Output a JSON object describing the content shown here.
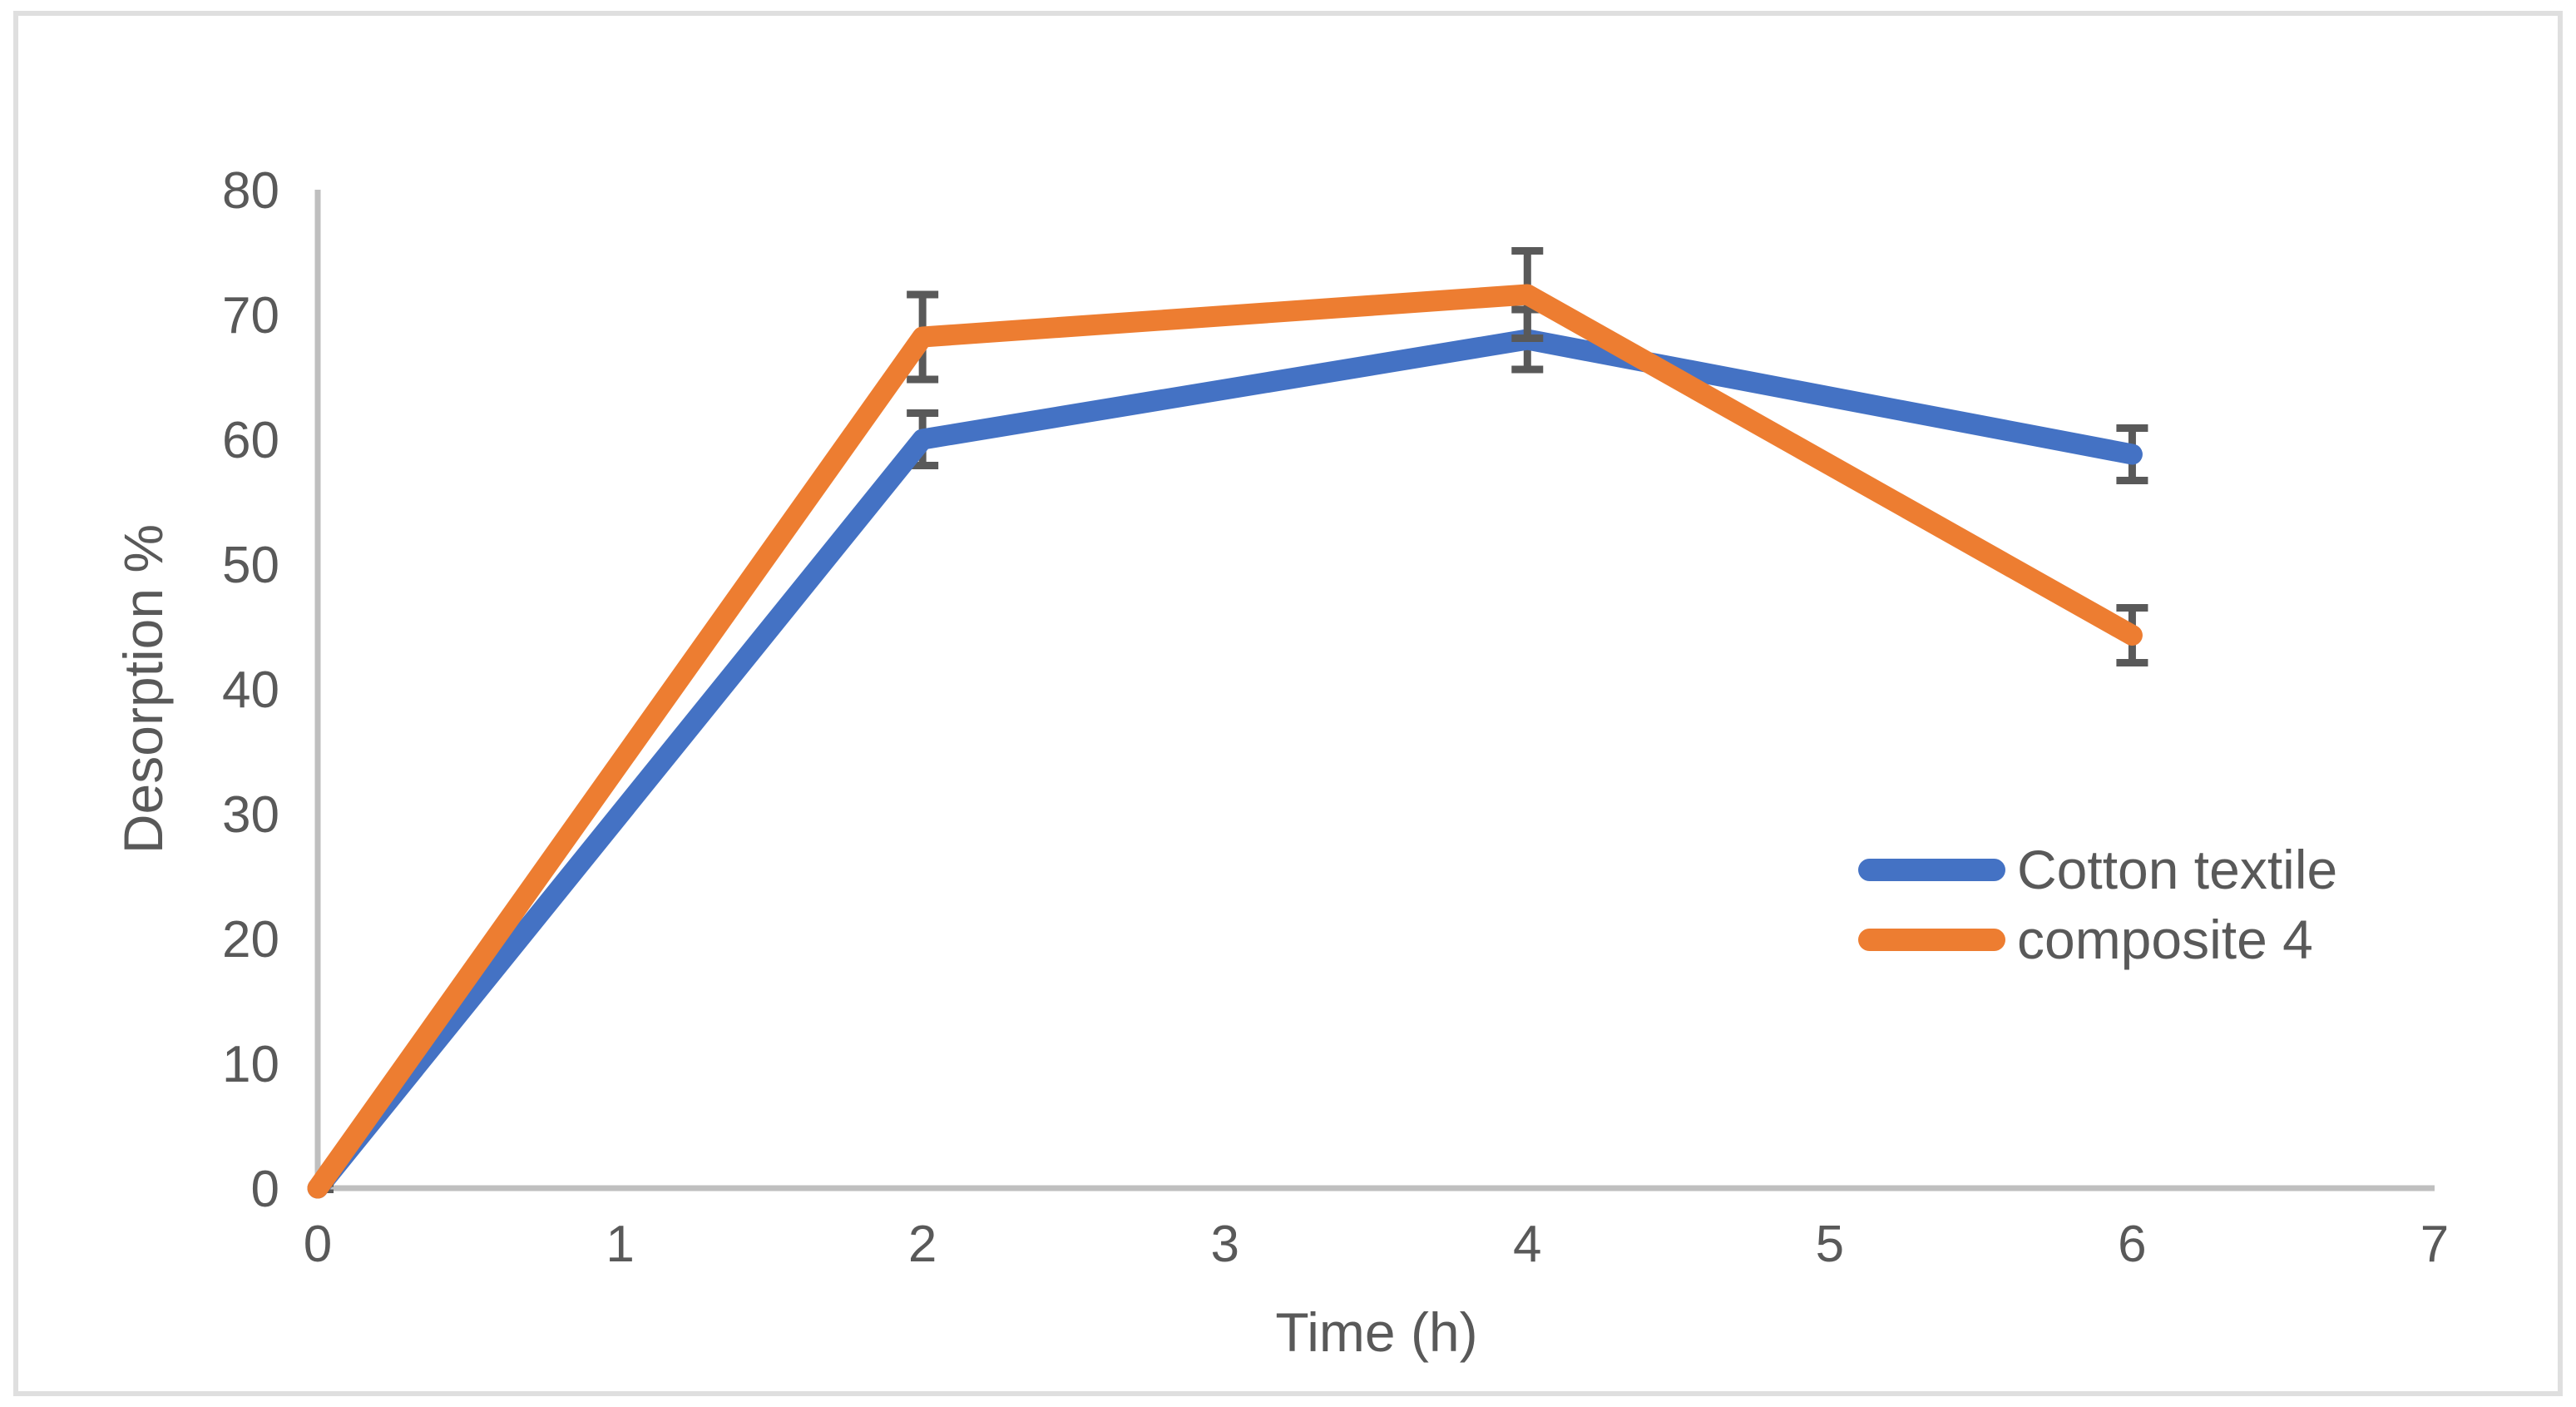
{
  "figure": {
    "xlabel": "Time (h)",
    "ylabel": "Desorption %"
  },
  "chart_data": {
    "type": "line",
    "title": "",
    "xlabel": "Time (h)",
    "ylabel": "Desorption %",
    "x": [
      0,
      2,
      4,
      6
    ],
    "series": [
      {
        "name": "Cotton textile",
        "color": "#4472C4",
        "values": [
          0,
          60,
          68,
          58.8
        ],
        "errors": [
          0.4,
          2.1,
          2.4,
          2.1
        ]
      },
      {
        "name": "composite 4",
        "color": "#ED7D31",
        "values": [
          0,
          68.2,
          71.6,
          44.3
        ],
        "errors": [
          0.4,
          3.4,
          3.5,
          2.2
        ]
      }
    ],
    "xlim": [
      0,
      7
    ],
    "ylim": [
      0,
      80
    ],
    "x_ticks": [
      0,
      1,
      2,
      3,
      4,
      5,
      6,
      7
    ],
    "y_ticks": [
      0,
      10,
      20,
      30,
      40,
      50,
      60,
      70,
      80
    ],
    "grid": false,
    "legend_position": "middle-right",
    "error_bars": true
  },
  "style": {
    "axis_color": "#BFBFBF",
    "tick_text_color": "#595959",
    "error_bar_color": "#595959",
    "frame_border_color": "#DFDFDF",
    "background": "#FFFFFF"
  }
}
